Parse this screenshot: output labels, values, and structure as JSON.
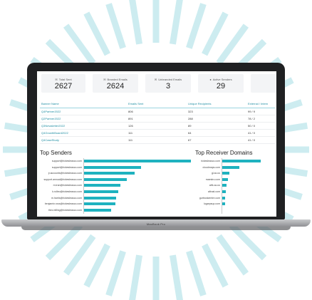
{
  "device": {
    "model": "MacBook Pro"
  },
  "colors": {
    "accent": "#1fb2bf",
    "rays": "#cdecf0",
    "link": "#1f8ea3"
  },
  "stats": [
    {
      "icon": "mail-icon",
      "label": "Total Sent",
      "value": "2627"
    },
    {
      "icon": "branded-mail-icon",
      "label": "Branded Emails",
      "value": "2624"
    },
    {
      "icon": "unbranded-mail-icon",
      "label": "Unbranded Emails",
      "value": "3"
    },
    {
      "icon": "user-icon",
      "label": "Active Senders",
      "value": "29"
    }
  ],
  "campaigns": {
    "headers": [
      "Banner Name",
      "Emails Sent",
      "Unique Recipients",
      "External / Intern"
    ],
    "rows": [
      [
        "Q4Partner2022",
        "806",
        "323",
        "99 / 9"
      ],
      [
        "Q2Partner2022",
        "891",
        "288",
        "78 / 2"
      ],
      [
        "Q3Newsletter2022",
        "126",
        "89",
        "50 / 0"
      ],
      [
        "Q4GrowthBoard2022",
        "111",
        "64",
        "41 / 0"
      ],
      [
        "Q4CaseStudy",
        "111",
        "67",
        "41 / 0"
      ]
    ]
  },
  "top_senders": {
    "title": "Top Senders",
    "max": 100,
    "items": [
      {
        "label": "support@rickesleasco.com",
        "value": 100
      },
      {
        "label": "support@rickesleasco.com",
        "value": 53
      },
      {
        "label": "jr.accounts@rickesleasco.com",
        "value": 47
      },
      {
        "label": "support.annual@rickesleasco.com",
        "value": 40
      },
      {
        "label": "m.tran@rickesleasco.com",
        "value": 34
      },
      {
        "label": "k.rolleo@rickesleasco.com",
        "value": 32
      },
      {
        "label": "m.harris@rickesleasco.com",
        "value": 30
      },
      {
        "label": "benjamin.ross@rickesleasco.com",
        "value": 29
      },
      {
        "label": "theo.billing@rickesleasco.com",
        "value": 25
      }
    ]
  },
  "top_domains": {
    "title": "Top Receiver Domains",
    "max": 100,
    "items": [
      {
        "label": "rickesleasco.com",
        "value": 100
      },
      {
        "label": "cloudmaps.com",
        "value": 44
      },
      {
        "label": "gl.ac.us",
        "value": 19
      },
      {
        "label": "maestro.com",
        "value": 14
      },
      {
        "label": "wilk.ac.us",
        "value": 11
      },
      {
        "label": "altrust.com",
        "value": 9
      },
      {
        "label": "gurtrustcentre.com",
        "value": 8
      },
      {
        "label": "lugarpsup.com",
        "value": 7
      }
    ]
  }
}
